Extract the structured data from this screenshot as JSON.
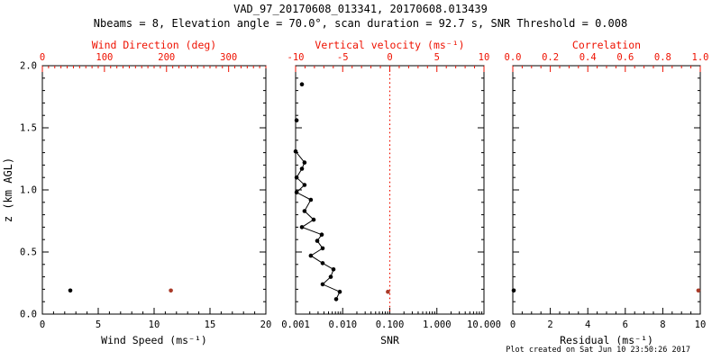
{
  "header": {
    "title": "VAD_97_20170608_013341, 20170608.013439",
    "subtitle": "Nbeams = 8, Elevation angle = 70.0°, scan duration = 92.7 s, SNR Threshold = 0.008"
  },
  "footer": {
    "created": "Plot created on Sat Jun 10 23:50:26 2017"
  },
  "colors": {
    "background": "#ffffff",
    "primary_axis": "#000000",
    "secondary_axis": "#ee1100",
    "data_primary": "#000000",
    "data_secondary": "#a93a28"
  },
  "chart_data": [
    {
      "name": "wind",
      "type": "scatter",
      "y_axis": {
        "label": "z (km AGL)",
        "min": 0,
        "max": 2,
        "minor_step": 0.1,
        "show_labels": true,
        "ticks": [
          {
            "v": 2,
            "t": "2.0"
          },
          {
            "v": 1.5,
            "t": "1.5"
          },
          {
            "v": 1,
            "t": "1.0"
          },
          {
            "v": 0.5,
            "t": "0.5"
          },
          {
            "v": 0,
            "t": "0.0"
          }
        ]
      },
      "x_bottom": {
        "label": "Wind Speed (ms⁻¹)",
        "scale": "linear",
        "min": 0,
        "max": 20,
        "minor_step": 1,
        "ticks": [
          {
            "v": 0,
            "t": "0"
          },
          {
            "v": 5,
            "t": "5"
          },
          {
            "v": 10,
            "t": "10"
          },
          {
            "v": 15,
            "t": "15"
          },
          {
            "v": 20,
            "t": "20"
          }
        ]
      },
      "x_top": {
        "label": "Wind Direction (deg)",
        "scale": "linear",
        "min": 0,
        "max": 360,
        "minor_step": 10,
        "ticks": [
          {
            "v": 0,
            "t": "0"
          },
          {
            "v": 100,
            "t": "100"
          },
          {
            "v": 200,
            "t": "200"
          },
          {
            "v": 300,
            "t": "300"
          }
        ]
      },
      "series": [
        {
          "name": "wind-speed",
          "axis": "bottom",
          "color": "#000000",
          "line": false,
          "points": [
            [
              2.5,
              0.19
            ]
          ]
        },
        {
          "name": "wind-direction",
          "axis": "top",
          "color": "#a93a28",
          "line": false,
          "points": [
            [
              207,
              0.19
            ]
          ]
        }
      ]
    },
    {
      "name": "snr",
      "type": "scatter",
      "x_bottom": {
        "label": "SNR",
        "scale": "log",
        "min": 0.001,
        "max": 10,
        "ticks": [
          {
            "v": 0.001,
            "t": "0.001"
          },
          {
            "v": 0.01,
            "t": "0.010"
          },
          {
            "v": 0.1,
            "t": "0.100"
          },
          {
            "v": 1,
            "t": "1.000"
          },
          {
            "v": 10,
            "t": "10.000"
          }
        ]
      },
      "x_top": {
        "label": "Vertical velocity (ms⁻¹)",
        "scale": "linear",
        "min": -10,
        "max": 10,
        "minor_step": 1,
        "ticks": [
          {
            "v": -10,
            "t": "-10"
          },
          {
            "v": -5,
            "t": "-5"
          },
          {
            "v": 0,
            "t": "0"
          },
          {
            "v": 5,
            "t": "5"
          },
          {
            "v": 10,
            "t": "10"
          }
        ]
      },
      "refline": {
        "axis": "top",
        "value": 0,
        "style": "dotted"
      },
      "series": [
        {
          "name": "snr-isolated-points",
          "axis": "bottom",
          "color": "#000000",
          "line": false,
          "points": [
            [
              0.00136,
              1.85
            ],
            [
              0.00105,
              1.56
            ]
          ]
        },
        {
          "name": "snr-profile",
          "axis": "bottom",
          "color": "#000000",
          "line": true,
          "points": [
            [
              0.001,
              1.31
            ],
            [
              0.00155,
              1.22
            ],
            [
              0.00136,
              1.17
            ],
            [
              0.00105,
              1.1
            ],
            [
              0.00155,
              1.04
            ],
            [
              0.00105,
              0.98
            ],
            [
              0.00211,
              0.92
            ],
            [
              0.00155,
              0.83
            ],
            [
              0.00241,
              0.76
            ],
            [
              0.00136,
              0.7
            ],
            [
              0.00359,
              0.64
            ],
            [
              0.00288,
              0.59
            ],
            [
              0.00375,
              0.53
            ],
            [
              0.00211,
              0.47
            ],
            [
              0.00375,
              0.41
            ],
            [
              0.00637,
              0.36
            ],
            [
              0.00558,
              0.3
            ],
            [
              0.00375,
              0.24
            ],
            [
              0.00866,
              0.18
            ],
            [
              0.00727,
              0.12
            ]
          ]
        },
        {
          "name": "vertical-velocity",
          "axis": "top",
          "color": "#a93a28",
          "line": false,
          "points": [
            [
              -0.2,
              0.18
            ]
          ]
        }
      ]
    },
    {
      "name": "residual",
      "type": "scatter",
      "x_bottom": {
        "label": "Residual (ms⁻¹)",
        "scale": "linear",
        "min": 0,
        "max": 10,
        "minor_step": 0.5,
        "ticks": [
          {
            "v": 0,
            "t": "0"
          },
          {
            "v": 2,
            "t": "2"
          },
          {
            "v": 4,
            "t": "4"
          },
          {
            "v": 6,
            "t": "6"
          },
          {
            "v": 8,
            "t": "8"
          },
          {
            "v": 10,
            "t": "10"
          }
        ]
      },
      "x_top": {
        "label": "Correlation",
        "scale": "linear",
        "min": 0,
        "max": 1,
        "minor_step": 0.05,
        "ticks": [
          {
            "v": 0,
            "t": "0.0"
          },
          {
            "v": 0.2,
            "t": "0.2"
          },
          {
            "v": 0.4,
            "t": "0.4"
          },
          {
            "v": 0.6,
            "t": "0.6"
          },
          {
            "v": 0.8,
            "t": "0.8"
          },
          {
            "v": 1,
            "t": "1.0"
          }
        ]
      },
      "series": [
        {
          "name": "residual",
          "axis": "bottom",
          "color": "#000000",
          "line": false,
          "points": [
            [
              0.05,
              0.19
            ]
          ]
        },
        {
          "name": "correlation",
          "axis": "top",
          "color": "#a93a28",
          "line": false,
          "points": [
            [
              0.99,
              0.19
            ]
          ]
        }
      ]
    }
  ]
}
